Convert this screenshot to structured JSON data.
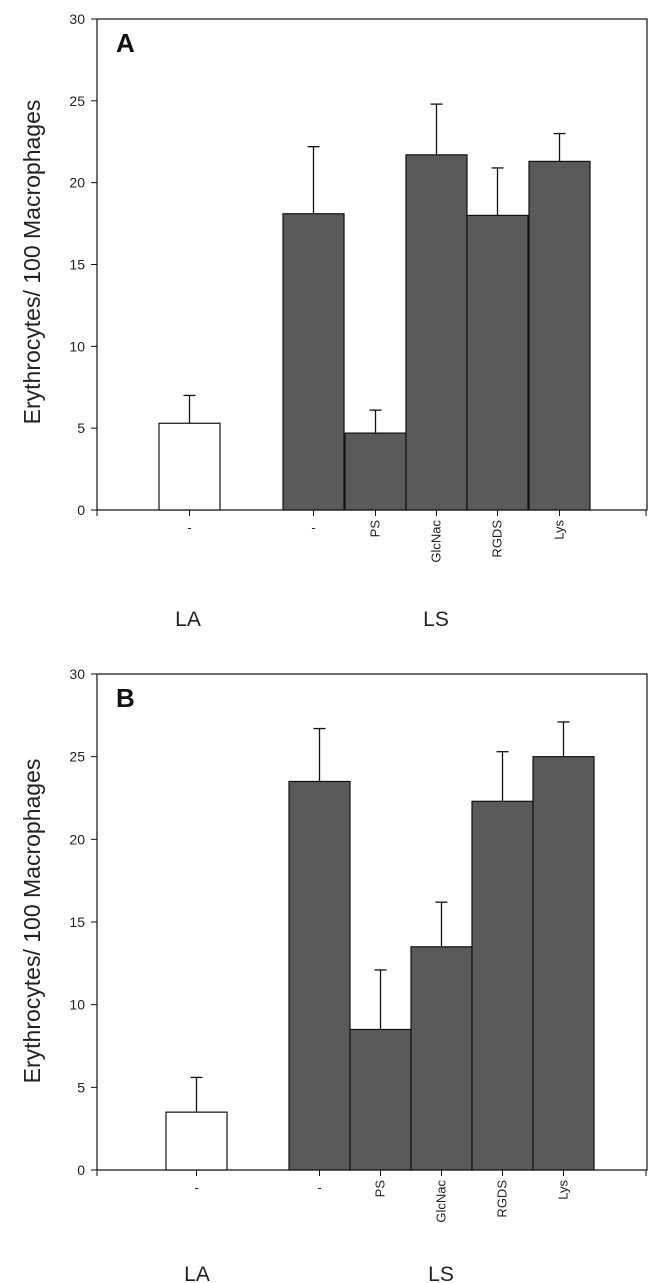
{
  "colors": {
    "filled_bar": "#5a5a5a",
    "empty_bar": "#ffffff",
    "axis": "#111111"
  },
  "chart_data": [
    {
      "type": "bar",
      "panel": "A",
      "ylabel": "Erythrocytes/ 100 Macrophages",
      "ylim": [
        0,
        30
      ],
      "yticks": [
        0,
        5,
        10,
        15,
        20,
        25,
        30
      ],
      "categories": [
        "-",
        "-",
        "PS",
        "GlcNac",
        "RGDS",
        "Lys"
      ],
      "groups": [
        {
          "label": "LA",
          "categories": [
            "-"
          ]
        },
        {
          "label": "LS",
          "categories": [
            "-",
            "PS",
            "GlcNac",
            "RGDS",
            "Lys"
          ]
        }
      ],
      "values": [
        5.3,
        18.1,
        4.7,
        21.7,
        18.0,
        21.3
      ],
      "errors": [
        1.7,
        4.1,
        1.4,
        3.1,
        2.9,
        1.7
      ],
      "fill": [
        "empty",
        "filled",
        "filled",
        "filled",
        "filled",
        "filled"
      ]
    },
    {
      "type": "bar",
      "panel": "B",
      "ylabel": "Erythrocytes/ 100 Macrophages",
      "ylim": [
        0,
        30
      ],
      "yticks": [
        0,
        5,
        10,
        15,
        20,
        25,
        30
      ],
      "categories": [
        "-",
        "-",
        "PS",
        "GlcNac",
        "RGDS",
        "Lys"
      ],
      "groups": [
        {
          "label": "LA",
          "categories": [
            "-"
          ]
        },
        {
          "label": "LS",
          "categories": [
            "-",
            "PS",
            "GlcNac",
            "RGDS",
            "Lys"
          ]
        }
      ],
      "values": [
        3.5,
        23.5,
        8.5,
        13.5,
        22.3,
        25.0
      ],
      "errors": [
        2.1,
        3.2,
        3.6,
        2.7,
        3.0,
        2.1
      ],
      "fill": [
        "empty",
        "filled",
        "filled",
        "filled",
        "filled",
        "filled"
      ]
    }
  ]
}
